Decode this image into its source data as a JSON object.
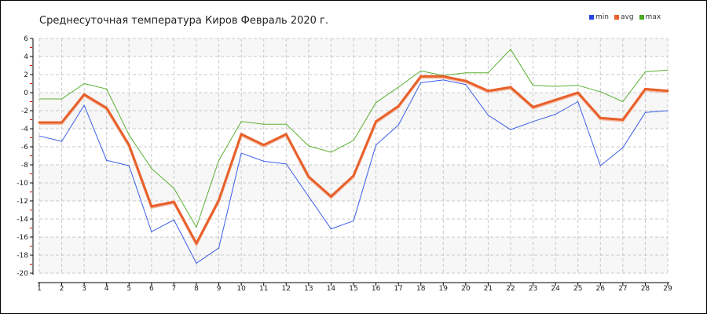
{
  "chart_data": {
    "type": "line",
    "title": "Среднесуточная температура Киров  Февраль 2020 г.",
    "xlabel": "",
    "ylabel": "",
    "x": [
      1,
      2,
      3,
      4,
      5,
      6,
      7,
      8,
      9,
      10,
      11,
      12,
      13,
      14,
      15,
      16,
      17,
      18,
      19,
      20,
      21,
      22,
      23,
      24,
      25,
      26,
      27,
      28,
      29
    ],
    "ylim": [
      -20,
      6
    ],
    "yticks": [
      6,
      4,
      2,
      0,
      -2,
      -4,
      -6,
      -8,
      -10,
      -12,
      -14,
      -16,
      -18,
      -20
    ],
    "grid": true,
    "legend_position": "top-right",
    "series": [
      {
        "name": "min",
        "color": "#3a5ee8",
        "values": [
          -4.8,
          -5.4,
          -1.4,
          -7.5,
          -8.1,
          -15.4,
          -14.1,
          -18.9,
          -17.2,
          -6.7,
          -7.6,
          -7.9,
          -11.5,
          -15.1,
          -14.2,
          -5.8,
          -3.6,
          1.1,
          1.4,
          0.9,
          -2.5,
          -4.1,
          -3.2,
          -2.4,
          -1.0,
          -8.1,
          -6.1,
          -2.2,
          -2.0
        ]
      },
      {
        "name": "avg",
        "color": "#e8602a",
        "values": [
          -3.3,
          -3.3,
          -0.2,
          -1.7,
          -5.8,
          -12.6,
          -12.1,
          -16.7,
          -11.9,
          -4.6,
          -5.8,
          -4.6,
          -9.3,
          -11.5,
          -9.2,
          -3.2,
          -1.5,
          1.8,
          1.8,
          1.3,
          0.2,
          0.6,
          -1.6,
          -0.8,
          0.0,
          -2.8,
          -3.0,
          0.4,
          0.2
        ]
      },
      {
        "name": "max",
        "color": "#5ab032",
        "values": [
          -0.7,
          -0.7,
          1.0,
          0.4,
          -4.7,
          -8.4,
          -10.6,
          -14.9,
          -7.5,
          -3.2,
          -3.5,
          -3.5,
          -5.9,
          -6.6,
          -5.3,
          -1.1,
          0.6,
          2.4,
          1.9,
          2.2,
          2.2,
          4.8,
          0.8,
          0.7,
          0.8,
          0.1,
          -1.0,
          2.3,
          2.5
        ]
      }
    ]
  }
}
